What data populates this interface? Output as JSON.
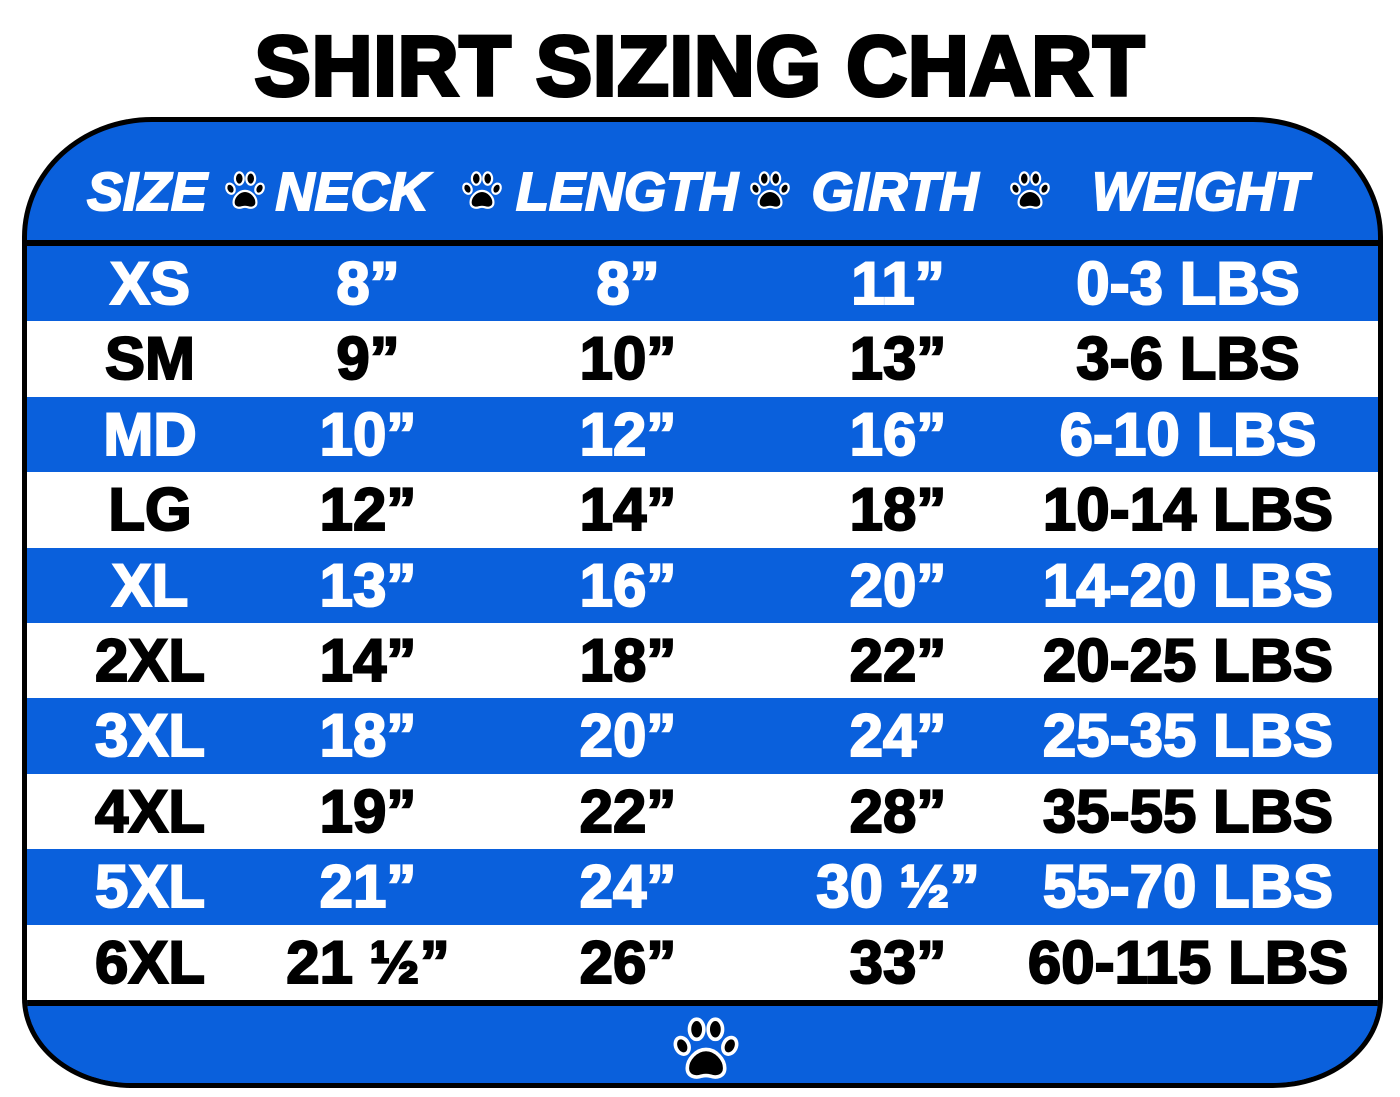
{
  "title": "SHIRT SIZING CHART",
  "colors": {
    "band_blue": "#0a60dc",
    "band_white": "#ffffff",
    "border": "#000000"
  },
  "icons": {
    "separator": "paw-print-icon",
    "footer": "paw-print-icon"
  },
  "chart_data": {
    "type": "table",
    "title": "SHIRT SIZING CHART",
    "columns": [
      "SIZE",
      "NECK",
      "LENGTH",
      "GIRTH",
      "WEIGHT"
    ],
    "rows": [
      [
        "XS",
        "8”",
        "8”",
        "11”",
        "0-3 LBS"
      ],
      [
        "SM",
        "9”",
        "10”",
        "13”",
        "3-6 LBS"
      ],
      [
        "MD",
        "10”",
        "12”",
        "16”",
        "6-10 LBS"
      ],
      [
        "LG",
        "12”",
        "14”",
        "18”",
        "10-14 LBS"
      ],
      [
        "XL",
        "13”",
        "16”",
        "20”",
        "14-20 LBS"
      ],
      [
        "2XL",
        "14”",
        "18”",
        "22”",
        "20-25 LBS"
      ],
      [
        "3XL",
        "18”",
        "20”",
        "24”",
        "25-35 LBS"
      ],
      [
        "4XL",
        "19”",
        "22”",
        "28”",
        "35-55 LBS"
      ],
      [
        "5XL",
        "21”",
        "24”",
        "30 ½”",
        "55-70 LBS"
      ],
      [
        "6XL",
        "21 ½”",
        "26”",
        "33”",
        "60-115 LBS"
      ]
    ],
    "row_colors": [
      "blue",
      "white",
      "blue",
      "white",
      "blue",
      "white",
      "blue",
      "white",
      "blue",
      "white"
    ]
  }
}
